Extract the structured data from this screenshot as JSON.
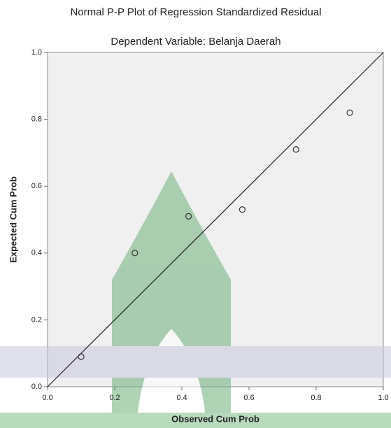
{
  "chart_data": {
    "type": "scatter",
    "title": "Normal P-P Plot of Regression Standardized Residual",
    "subtitle": "Dependent Variable: Belanja Daerah",
    "x_label": "Observed Cum Prob",
    "y_label": "Expected Cum Prob",
    "x": [
      0.1,
      0.26,
      0.42,
      0.58,
      0.74,
      0.9
    ],
    "values": [
      0.09,
      0.4,
      0.51,
      0.53,
      0.71,
      0.82
    ],
    "color": "#333333",
    "diagonal": true,
    "xlim": [
      0,
      1
    ],
    "ylim": [
      0,
      1
    ],
    "xticks": [
      {
        "value": 0,
        "label": "0.0"
      },
      0.2,
      0.4,
      0.6,
      0.8,
      {
        "value": 1,
        "label": "1.0"
      }
    ],
    "yticks": [
      {
        "value": 0,
        "label": "0.0"
      },
      0.2,
      0.4,
      0.6,
      0.8,
      {
        "value": 1,
        "label": "1.0"
      }
    ]
  }
}
